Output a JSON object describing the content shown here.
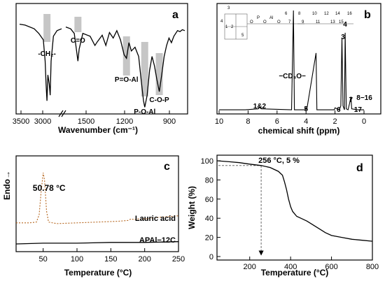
{
  "chart_data": [
    {
      "panel": "a",
      "type": "line",
      "xlabel": "Wavenumber (cm⁻¹)",
      "xtick_labels": [
        "3500",
        "3000",
        "1500",
        "1200",
        "900"
      ],
      "x_axis_break": true,
      "y_ticks_visible": false,
      "peaks": [
        {
          "x": 2920,
          "label": "-CH₂-"
        },
        {
          "x": 1700,
          "label": "C=O"
        },
        {
          "x": 1300,
          "label": "P=O-Al"
        },
        {
          "x": 1150,
          "label": "P-O-Al"
        },
        {
          "x": 1030,
          "label": "C-O-P"
        }
      ],
      "series": [
        {
          "values": [
            [
              3520,
              0.95
            ],
            [
              3400,
              0.94
            ],
            [
              3200,
              0.9
            ],
            [
              3100,
              0.85
            ],
            [
              3000,
              0.78
            ],
            [
              2960,
              0.55
            ],
            [
              2940,
              0.3
            ],
            [
              2920,
              0.12
            ],
            [
              2900,
              0.4
            ],
            [
              2870,
              0.3
            ],
            [
              2850,
              0.18
            ],
            [
              2830,
              0.55
            ],
            [
              2780,
              0.82
            ],
            [
              2700,
              0.88
            ],
            [
              2600,
              0.9
            ]
          ]
        },
        {
          "values": [
            [
              1800,
              0.92
            ],
            [
              1760,
              0.9
            ],
            [
              1730,
              0.85
            ],
            [
              1710,
              0.65
            ],
            [
              1700,
              0.55
            ],
            [
              1690,
              0.68
            ],
            [
              1660,
              0.85
            ],
            [
              1600,
              0.82
            ],
            [
              1560,
              0.72
            ],
            [
              1540,
              0.76
            ],
            [
              1500,
              0.83
            ],
            [
              1470,
              0.72
            ],
            [
              1440,
              0.86
            ],
            [
              1410,
              0.8
            ],
            [
              1380,
              0.88
            ],
            [
              1350,
              0.78
            ],
            [
              1320,
              0.62
            ],
            [
              1300,
              0.58
            ],
            [
              1280,
              0.75
            ],
            [
              1260,
              0.66
            ],
            [
              1230,
              0.7
            ],
            [
              1200,
              0.6
            ],
            [
              1180,
              0.35
            ],
            [
              1160,
              0.12
            ],
            [
              1150,
              0.05
            ],
            [
              1130,
              0.18
            ],
            [
              1110,
              0.45
            ],
            [
              1090,
              0.6
            ],
            [
              1070,
              0.5
            ],
            [
              1050,
              0.35
            ],
            [
              1030,
              0.22
            ],
            [
              1010,
              0.4
            ],
            [
              990,
              0.6
            ],
            [
              970,
              0.72
            ],
            [
              950,
              0.8
            ],
            [
              930,
              0.75
            ],
            [
              910,
              0.82
            ],
            [
              880,
              0.88
            ],
            [
              860,
              0.87
            ],
            [
              840,
              0.89
            ],
            [
              820,
              0.88
            ]
          ]
        }
      ]
    },
    {
      "panel": "b",
      "type": "line",
      "xlabel": "chemical shift (ppm)",
      "xlim": [
        10,
        0
      ],
      "xtick_labels": [
        "10",
        "8",
        "6",
        "4",
        "2",
        "0"
      ],
      "y_ticks_visible": false,
      "peak_labels": [
        {
          "x": 7.2,
          "label": "1&2"
        },
        {
          "x": 4.85,
          "label": "−CD₃O−"
        },
        {
          "x": 4.0,
          "label": "5"
        },
        {
          "x": 1.75,
          "label": "6"
        },
        {
          "x": 1.45,
          "label": "3"
        },
        {
          "x": 1.3,
          "label": "4"
        },
        {
          "x": 1.0,
          "label": "7"
        },
        {
          "x": 0.65,
          "label": "8−16"
        },
        {
          "x": 0.9,
          "label": "17"
        }
      ],
      "structure_labels": [
        "1",
        "2",
        "3",
        "4",
        "5",
        "6",
        "7",
        "8",
        "9",
        "10",
        "11",
        "12",
        "13",
        "14",
        "15",
        "16"
      ],
      "structure_atoms": [
        "O",
        "P",
        "O",
        "Al",
        "O"
      ],
      "series": [
        {
          "values": [
            [
              10,
              0.02
            ],
            [
              8.2,
              0.02
            ],
            [
              7.3,
              0.03
            ],
            [
              7.2,
              0.05
            ],
            [
              7.1,
              0.03
            ],
            [
              5.0,
              0.02
            ],
            [
              4.87,
              1.0
            ],
            [
              4.8,
              0.02
            ],
            [
              4.05,
              0.02
            ],
            [
              4.0,
              0.04
            ],
            [
              3.95,
              0.02
            ],
            [
              3.31,
              0.58
            ],
            [
              3.25,
              0.02
            ],
            [
              2.05,
              0.02
            ],
            [
              2.0,
              0.04
            ],
            [
              1.7,
              0.02
            ],
            [
              1.6,
              0.06
            ],
            [
              1.52,
              0.73
            ],
            [
              1.45,
              0.06
            ],
            [
              1.35,
              0.02
            ],
            [
              1.3,
              0.78
            ],
            [
              1.22,
              0.03
            ],
            [
              1.1,
              0.02
            ],
            [
              1.0,
              0.08
            ],
            [
              0.9,
              0.15
            ],
            [
              0.85,
              0.03
            ],
            [
              0.5,
              0.02
            ],
            [
              0,
              0.02
            ]
          ]
        }
      ]
    },
    {
      "panel": "c",
      "type": "line",
      "ylabel": "Endo→",
      "xlabel": "Temperature (°C)",
      "xlim": [
        10,
        250
      ],
      "xticks": [
        50,
        100,
        150,
        200,
        250
      ],
      "y_ticks_visible": false,
      "annotations": [
        "50.78 °C"
      ],
      "series": [
        {
          "name": "Lauric acid",
          "color": "#b5651d",
          "dashed": true,
          "values": [
            [
              10,
              0.35
            ],
            [
              30,
              0.35
            ],
            [
              40,
              0.36
            ],
            [
              44,
              0.45
            ],
            [
              47,
              0.75
            ],
            [
              50,
              0.99
            ],
            [
              52,
              0.9
            ],
            [
              55,
              0.5
            ],
            [
              58,
              0.36
            ],
            [
              70,
              0.34
            ],
            [
              100,
              0.35
            ],
            [
              130,
              0.36
            ],
            [
              160,
              0.37
            ],
            [
              175,
              0.38
            ],
            [
              180,
              0.4
            ],
            [
              185,
              0.39
            ],
            [
              190,
              0.4
            ],
            [
              200,
              0.4
            ],
            [
              220,
              0.42
            ],
            [
              250,
              0.44
            ]
          ]
        },
        {
          "name": "APAl−12C",
          "color": "#000000",
          "dashed": false,
          "values": [
            [
              10,
              0.08
            ],
            [
              50,
              0.09
            ],
            [
              100,
              0.09
            ],
            [
              150,
              0.1
            ],
            [
              200,
              0.1
            ],
            [
              250,
              0.11
            ]
          ]
        }
      ]
    },
    {
      "panel": "d",
      "type": "line",
      "xlabel": "Temperature (°C)",
      "ylabel": "Weight (%)",
      "xlim": [
        40,
        800
      ],
      "ylim": [
        0,
        100
      ],
      "xticks": [
        200,
        400,
        600,
        800
      ],
      "yticks": [
        0,
        20,
        40,
        60,
        80,
        100
      ],
      "annotations": [
        "256 °C, 5 %"
      ],
      "marker": {
        "x": 256,
        "y": 95
      },
      "series": [
        {
          "color": "#000000",
          "values": [
            [
              40,
              100
            ],
            [
              100,
              99
            ],
            [
              150,
              98
            ],
            [
              200,
              96.5
            ],
            [
              256,
              95
            ],
            [
              300,
              93
            ],
            [
              340,
              89
            ],
            [
              360,
              85
            ],
            [
              370,
              78
            ],
            [
              380,
              70
            ],
            [
              390,
              60
            ],
            [
              400,
              52
            ],
            [
              410,
              47
            ],
            [
              430,
              42
            ],
            [
              450,
              40
            ],
            [
              480,
              37
            ],
            [
              510,
              33
            ],
            [
              540,
              29
            ],
            [
              570,
              25
            ],
            [
              600,
              22
            ],
            [
              650,
              20
            ],
            [
              700,
              18
            ],
            [
              750,
              17
            ],
            [
              800,
              16
            ]
          ]
        }
      ]
    }
  ]
}
